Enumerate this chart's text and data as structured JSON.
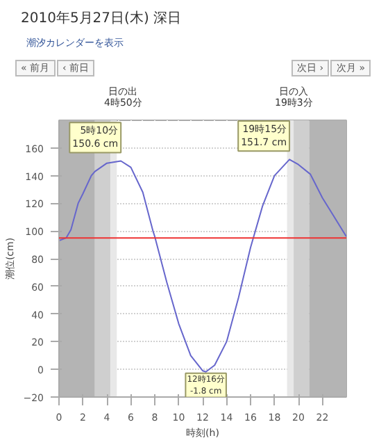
{
  "chart_data": {
    "type": "line",
    "title": "2010年5月27日(木) 深日",
    "xlabel": "時刻(h)",
    "ylabel": "潮位(cm)",
    "x": [
      0,
      0.6,
      1,
      1.6,
      2,
      2.7,
      3,
      4,
      5.17,
      6,
      7,
      7.85,
      8,
      9,
      10,
      11,
      12,
      12.27,
      13,
      14,
      15,
      16,
      17,
      18,
      19.25,
      20,
      21,
      22,
      23,
      24
    ],
    "series": [
      {
        "color": "#6666cc",
        "values": [
          93,
          95,
          101,
          120,
          127,
          140,
          143,
          149,
          150.6,
          146,
          128,
          100,
          96,
          63,
          33,
          10,
          -1,
          -1.8,
          3,
          20,
          52,
          88,
          118,
          140,
          151.7,
          148,
          141,
          124,
          110,
          96
        ]
      }
    ],
    "xlim": [
      0,
      24
    ],
    "ylim": [
      -20,
      180
    ],
    "xticks": [
      0,
      2,
      4,
      6,
      8,
      10,
      12,
      14,
      16,
      18,
      20,
      22
    ],
    "yticks": [
      -20,
      0,
      20,
      40,
      60,
      80,
      100,
      120,
      140,
      160
    ],
    "grid": true,
    "marker": "none",
    "line_style": "solid",
    "ref_lines": [
      {
        "axis": "y",
        "value": 95,
        "label": null,
        "color": "#ee3333"
      }
    ],
    "bands": [
      {
        "axis": "x",
        "from": 0,
        "to": 3.0,
        "label": null,
        "color": "#b4b4b4"
      },
      {
        "axis": "x",
        "from": 3.0,
        "to": 4.3,
        "label": null,
        "color": "#cfcfcf"
      },
      {
        "axis": "x",
        "from": 4.3,
        "to": 4.83,
        "label": null,
        "color": "#e8e8e8"
      },
      {
        "axis": "x",
        "from": 19.05,
        "to": 19.6,
        "label": null,
        "color": "#e8e8e8"
      },
      {
        "axis": "x",
        "from": 19.6,
        "to": 20.9,
        "label": null,
        "color": "#cfcfcf"
      },
      {
        "axis": "x",
        "from": 20.9,
        "to": 24,
        "label": null,
        "color": "#b4b4b4"
      }
    ],
    "annotations": [
      "潮汐カレンダーを表示",
      "« 前月",
      "‹ 前日",
      "次日 ›",
      "次月 »",
      "日の出\n4時50分",
      "日の入\n19時3分",
      {
        "text": "5時10分\n150.6 cm",
        "x": 5.17,
        "y": 150.6
      },
      {
        "text": "19時15分\n151.7 cm",
        "x": 19.25,
        "y": 151.7
      },
      {
        "text": "12時16分\n-1.8 cm",
        "x": 12.27,
        "y": -1.8
      }
    ]
  }
}
